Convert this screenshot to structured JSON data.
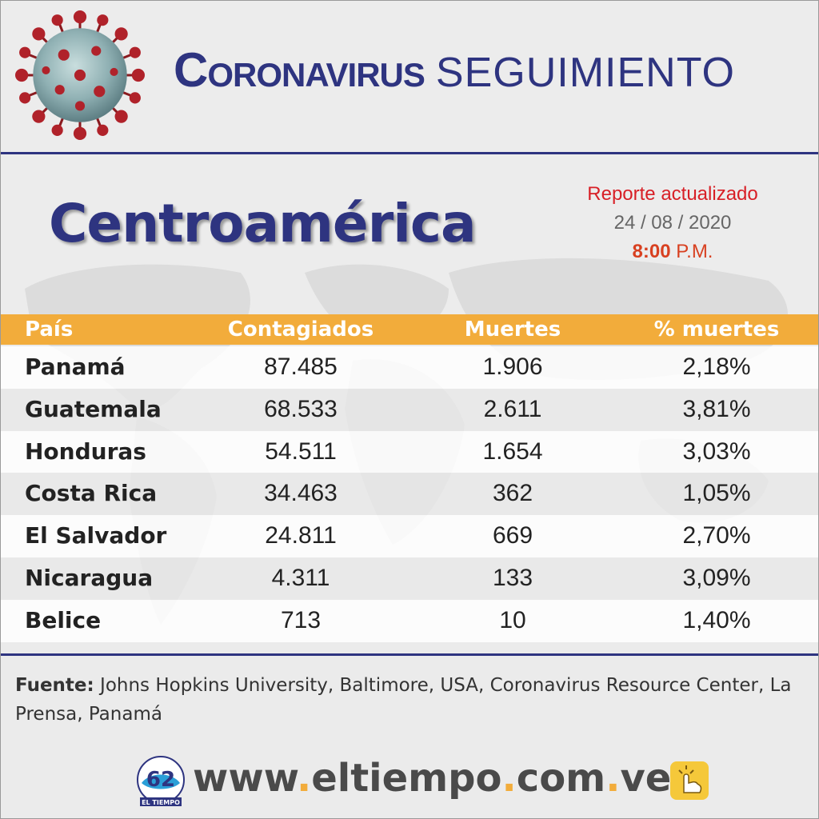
{
  "header": {
    "title_main": "Coronavirus",
    "title_sub": "SEGUIMIENTO"
  },
  "region": "Centroamérica",
  "report": {
    "line1": "Reporte actualizado",
    "date": "24 / 08 / 2020",
    "time": "8:00",
    "ampm": "P.M."
  },
  "table": {
    "headers": [
      "País",
      "Contagiados",
      "Muertes",
      "% muertes"
    ],
    "rows": [
      {
        "pais": "Panamá",
        "contagiados": "87.485",
        "muertes": "1.906",
        "porcentaje": "2,18%"
      },
      {
        "pais": "Guatemala",
        "contagiados": "68.533",
        "muertes": "2.611",
        "porcentaje": "3,81%"
      },
      {
        "pais": "Honduras",
        "contagiados": "54.511",
        "muertes": "1.654",
        "porcentaje": "3,03%"
      },
      {
        "pais": "Costa Rica",
        "contagiados": "34.463",
        "muertes": "362",
        "porcentaje": "1,05%"
      },
      {
        "pais": "El Salvador",
        "contagiados": "24.811",
        "muertes": "669",
        "porcentaje": "2,70%"
      },
      {
        "pais": "Nicaragua",
        "contagiados": "4.311",
        "muertes": "133",
        "porcentaje": "3,09%"
      },
      {
        "pais": "Belice",
        "contagiados": "713",
        "muertes": "10",
        "porcentaje": "1,40%"
      }
    ]
  },
  "footer": {
    "source_label": "Fuente:",
    "source_text": " Johns Hopkins University, Baltimore, USA, Coronavirus Resource Center, La Prensa, Panamá",
    "url_parts": [
      "www",
      ".",
      "eltiempo",
      ".",
      "com",
      ".",
      "ve"
    ],
    "logo_text": "EL TIEMPO",
    "logo_number": "62"
  },
  "colors": {
    "navy": "#2e3480",
    "orange": "#f2ac3b",
    "red": "#d81f26"
  },
  "icons": [
    "coronavirus-icon",
    "world-map",
    "eltiempo-logo",
    "click-hand-icon"
  ]
}
